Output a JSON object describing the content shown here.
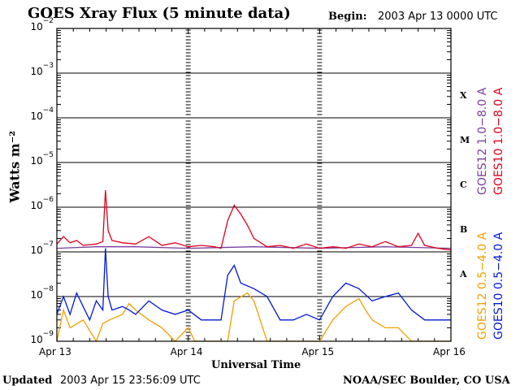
{
  "header": {
    "title": "GOES Xray Flux (5 minute data)",
    "begin_label": "Begin:",
    "begin_value": "2003 Apr 13 0000 UTC"
  },
  "footer": {
    "updated_label": "Updated",
    "updated_value": "2003 Apr 15 23:56:09 UTC",
    "credit": "NOAA/SEC Boulder, CO USA"
  },
  "chart_data": {
    "type": "line",
    "title": "GOES Xray Flux (5 minute data)",
    "xlabel": "Universal Time",
    "ylabel": "Watts m⁻²",
    "log_y": true,
    "ylim": [
      "1e-9",
      "1e-2"
    ],
    "y_ticks": [
      {
        "base": "10",
        "exp": "−2"
      },
      {
        "base": "10",
        "exp": "−3"
      },
      {
        "base": "10",
        "exp": "−4"
      },
      {
        "base": "10",
        "exp": "−5"
      },
      {
        "base": "10",
        "exp": "−6"
      },
      {
        "base": "10",
        "exp": "−7"
      },
      {
        "base": "10",
        "exp": "−8"
      },
      {
        "base": "10",
        "exp": "−9"
      }
    ],
    "x_ticks": [
      "Apr 13",
      "Apr 14",
      "Apr 15",
      "Apr 16"
    ],
    "x_range_days": [
      0,
      3
    ],
    "flare_classes": [
      "X",
      "M",
      "C",
      "B",
      "A"
    ],
    "grid": true,
    "legend_position": "right",
    "series": [
      {
        "name": "GOES12 1.0−8.0 A",
        "color": "#7a3fa0",
        "x": [
          0,
          0.3,
          0.6,
          1.0,
          1.5,
          2.0,
          2.5,
          3.0
        ],
        "y": [
          1.2e-07,
          1.3e-07,
          1.3e-07,
          1.2e-07,
          1.3e-07,
          1.2e-07,
          1.3e-07,
          1.2e-07
        ]
      },
      {
        "name": "GOES10 1.0−8.0 A",
        "color": "#e0001a",
        "x": [
          0,
          0.05,
          0.1,
          0.15,
          0.2,
          0.3,
          0.35,
          0.37,
          0.39,
          0.42,
          0.5,
          0.6,
          0.7,
          0.8,
          0.9,
          1.0,
          1.1,
          1.2,
          1.25,
          1.3,
          1.35,
          1.4,
          1.45,
          1.5,
          1.6,
          1.7,
          1.8,
          1.9,
          2.0,
          2.1,
          2.2,
          2.3,
          2.4,
          2.5,
          2.6,
          2.7,
          2.75,
          2.8,
          2.9,
          3.0
        ],
        "y": [
          1.5e-07,
          2.2e-07,
          1.6e-07,
          1.8e-07,
          1.4e-07,
          1.5e-07,
          1.7e-07,
          2.4e-06,
          3e-07,
          1.8e-07,
          1.6e-07,
          1.5e-07,
          2.2e-07,
          1.4e-07,
          1.6e-07,
          1.3e-07,
          1.4e-07,
          1.3e-07,
          1.2e-07,
          5e-07,
          1.1e-06,
          7e-07,
          4e-07,
          2e-07,
          1.3e-07,
          1.4e-07,
          1.2e-07,
          1.5e-07,
          1.2e-07,
          1.3e-07,
          1.2e-07,
          1.5e-07,
          1.3e-07,
          1.7e-07,
          1.3e-07,
          1.4e-07,
          2.6e-07,
          1.4e-07,
          1.2e-07,
          1.1e-07
        ]
      },
      {
        "name": "GOES12 0.5−4.0 A",
        "color": "#f0a000",
        "x": [
          0,
          0.05,
          0.1,
          0.2,
          0.3,
          0.35,
          0.4,
          0.5,
          0.55,
          0.6,
          0.7,
          0.8,
          0.9,
          1.0,
          1.05,
          1.1,
          1.2,
          1.3,
          1.35,
          1.45,
          1.5,
          1.6,
          1.7,
          1.8,
          1.9,
          2.0,
          2.1,
          2.2,
          2.3,
          2.35,
          2.4,
          2.5,
          2.6,
          2.7,
          2.8,
          2.9,
          3.0
        ],
        "y": [
          1e-09,
          5e-09,
          2e-09,
          3e-09,
          1e-09,
          2.5e-09,
          3e-09,
          4e-09,
          7e-09,
          5e-09,
          3e-09,
          2e-09,
          1e-09,
          2e-09,
          1e-09,
          1e-09,
          1e-09,
          1e-09,
          8e-09,
          1.2e-08,
          8e-09,
          1e-09,
          1e-09,
          1e-09,
          1e-09,
          1e-09,
          3e-09,
          6e-09,
          9e-09,
          5e-09,
          3e-09,
          2e-09,
          2e-09,
          1e-09,
          1e-09,
          1e-09,
          1e-09
        ]
      },
      {
        "name": "GOES10 0.5−4.0 A",
        "color": "#0018d8",
        "x": [
          0,
          0.05,
          0.1,
          0.15,
          0.2,
          0.25,
          0.3,
          0.35,
          0.37,
          0.39,
          0.42,
          0.5,
          0.55,
          0.6,
          0.7,
          0.8,
          0.9,
          1.0,
          1.1,
          1.2,
          1.25,
          1.3,
          1.35,
          1.4,
          1.5,
          1.6,
          1.7,
          1.8,
          1.9,
          2.0,
          2.1,
          2.2,
          2.3,
          2.4,
          2.5,
          2.6,
          2.7,
          2.8,
          2.9,
          3.0
        ],
        "y": [
          4e-09,
          1e-08,
          4e-09,
          1.2e-08,
          6e-09,
          3e-09,
          8e-09,
          5e-09,
          1.2e-07,
          1e-08,
          5e-09,
          6e-09,
          5e-09,
          4e-09,
          8e-09,
          5e-09,
          4e-09,
          5e-09,
          3e-09,
          3e-09,
          3e-09,
          3e-08,
          5e-08,
          2e-08,
          1.5e-08,
          1e-08,
          3e-09,
          3e-09,
          4e-09,
          3e-09,
          1e-08,
          2e-08,
          1.5e-08,
          8e-09,
          1e-08,
          1.2e-08,
          5e-09,
          3e-09,
          3e-09,
          3e-09
        ]
      }
    ]
  }
}
